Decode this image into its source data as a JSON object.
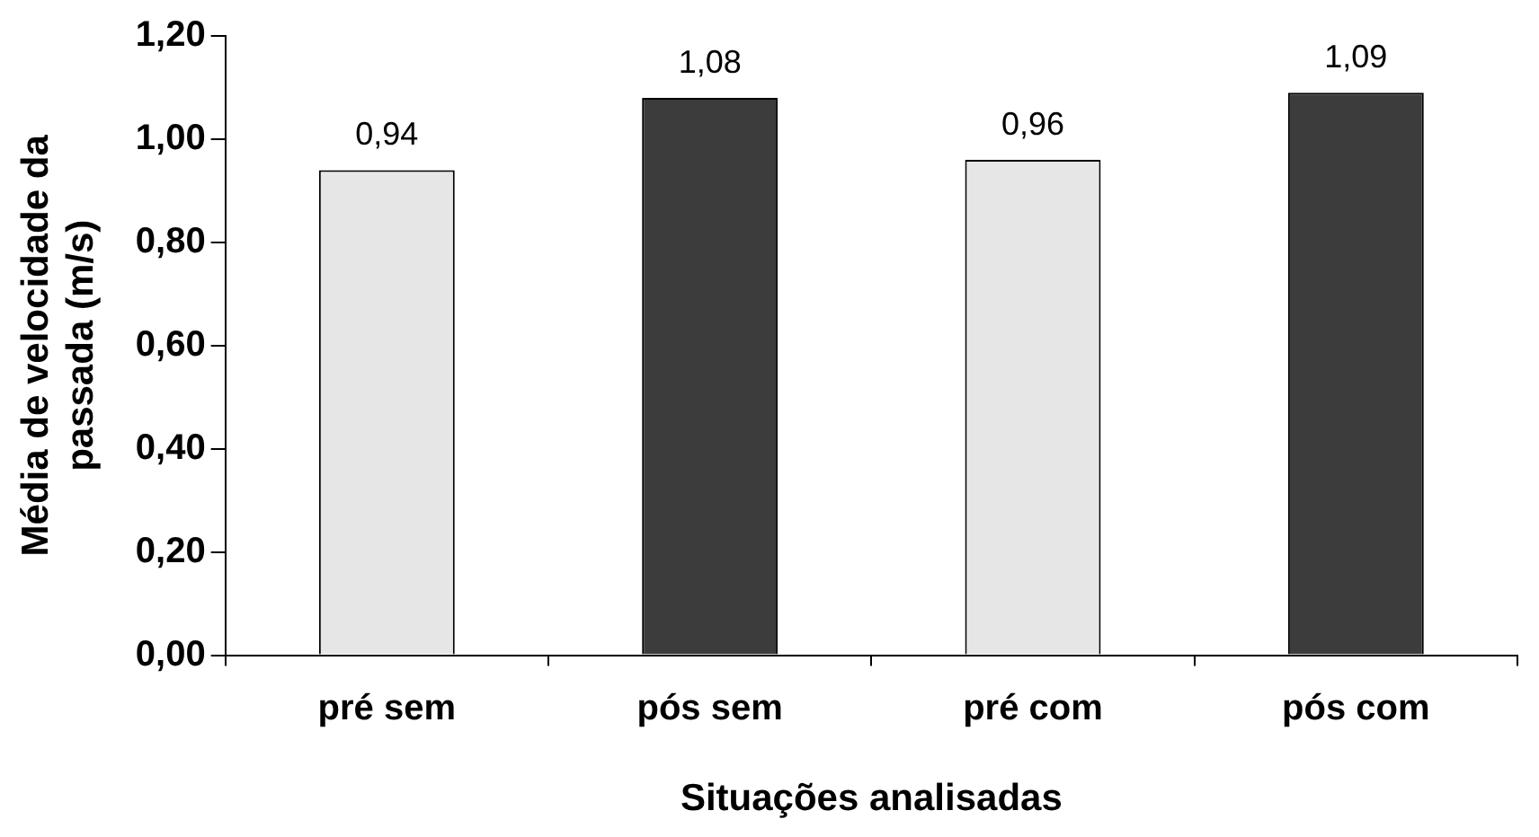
{
  "chart_data": {
    "type": "bar",
    "xlabel": "Situações analisadas",
    "ylabel": "Média de velocidade da passada (m/s)",
    "categories": [
      "pré sem",
      "pós sem",
      "pré com",
      "pós com"
    ],
    "values": [
      0.94,
      1.08,
      0.96,
      1.09
    ],
    "colors": [
      "#e6e6e6",
      "#3c3c3c",
      "#e6e6e6",
      "#3c3c3c"
    ],
    "value_labels": [
      "0,94",
      "1,08",
      "0,96",
      "1,09"
    ],
    "ylim": [
      0,
      1.2
    ],
    "yticks": [
      {
        "value": 0,
        "label": "0,00"
      },
      {
        "value": 0.2,
        "label": "0,20"
      },
      {
        "value": 0.4,
        "label": "0,40"
      },
      {
        "value": 0.6,
        "label": "0,60"
      },
      {
        "value": 0.8,
        "label": "0,80"
      },
      {
        "value": 1.0,
        "label": "1,00"
      },
      {
        "value": 1.2,
        "label": "1,20"
      }
    ],
    "grid": false,
    "legend": false
  }
}
